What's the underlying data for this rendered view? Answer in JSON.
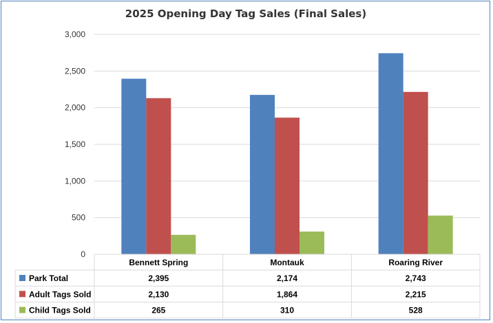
{
  "chart_data": {
    "type": "bar",
    "title": "2025 Opening Day Tag Sales (Final Sales)",
    "categories": [
      "Bennett Spring",
      "Montauk",
      "Roaring River"
    ],
    "series": [
      {
        "name": "Park Total",
        "color": "#4f81bd",
        "values": [
          2395,
          2174,
          2743
        ],
        "labels": [
          "2,395",
          "2,174",
          "2,743"
        ]
      },
      {
        "name": "Adult Tags Sold",
        "color": "#c0504d",
        "values": [
          2130,
          1864,
          2215
        ],
        "labels": [
          "2,130",
          "1,864",
          "2,215"
        ]
      },
      {
        "name": "Child Tags Sold",
        "color": "#9bbb59",
        "values": [
          265,
          310,
          528
        ],
        "labels": [
          "265",
          "310",
          "528"
        ]
      }
    ],
    "ylim": [
      0,
      3000
    ],
    "yticks": [
      0,
      500,
      1000,
      1500,
      2000,
      2500,
      3000
    ],
    "ytick_labels": [
      "0",
      "500",
      "1,000",
      "1,500",
      "2,000",
      "2,500",
      "3,000"
    ],
    "grid": true,
    "legend": "data-table"
  }
}
